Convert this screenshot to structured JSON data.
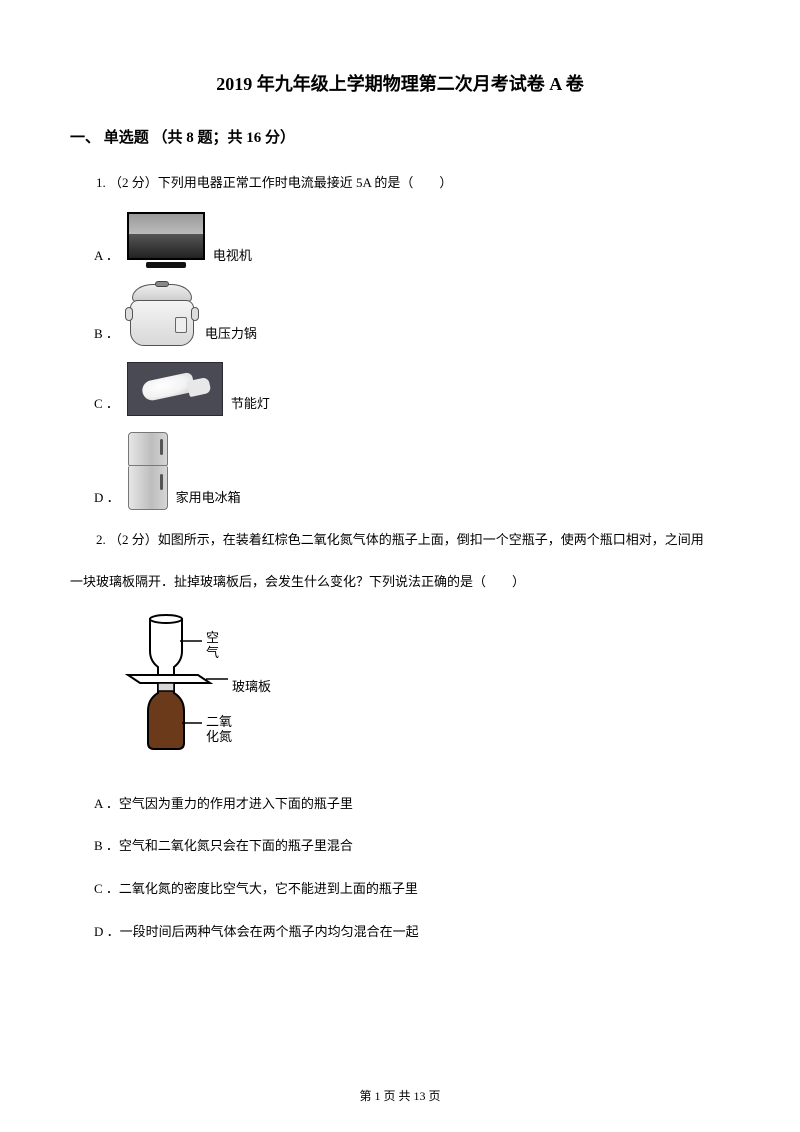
{
  "title": "2019 年九年级上学期物理第二次月考试卷 A 卷",
  "section": "一、 单选题 （共 8 题；共 16 分）",
  "q1": {
    "stem": "1.  （2 分）下列用电器正常工作时电流最接近 5A 的是（　　）",
    "options": {
      "A": {
        "letter": "A ．",
        "label": "电视机"
      },
      "B": {
        "letter": "B ．",
        "label": "电压力锅"
      },
      "C": {
        "letter": "C ．",
        "label": "节能灯"
      },
      "D": {
        "letter": "D ．",
        "label": "家用电冰箱"
      }
    }
  },
  "q2": {
    "stem_line1": "2.  （2 分）如图所示，在装着红棕色二氧化氮气体的瓶子上面，倒扣一个空瓶子，使两个瓶口相对，之间用",
    "stem_line2": "一块玻璃板隔开．扯掉玻璃板后，会发生什么变化？下列说法正确的是（　　）",
    "diagram": {
      "top_label": "空气",
      "mid_label": "玻璃板",
      "bot_label_l1": "二氧",
      "bot_label_l2": "化氮"
    },
    "options": {
      "A": "A ．空气因为重力的作用才进入下面的瓶子里",
      "B": "B ．空气和二氧化氮只会在下面的瓶子里混合",
      "C": "C ．二氧化氮的密度比空气大，它不能进到上面的瓶子里",
      "D": "D ．一段时间后两种气体会在两个瓶子内均匀混合在一起"
    }
  },
  "footer": "第 1 页 共 13 页"
}
